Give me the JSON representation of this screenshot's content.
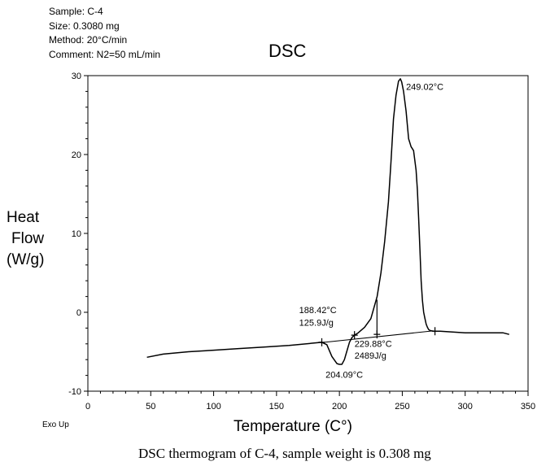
{
  "header": {
    "sample": "Sample: C-4",
    "size": "Size: 0.3080 mg",
    "method": "Method: 20°C/min",
    "comment": "Comment: N2=50 mL/min"
  },
  "footer": {
    "exo": "Exo Up",
    "caption": "DSC thermogram of C-4, sample weight is 0.308 mg"
  },
  "chart_data": {
    "type": "line",
    "title": "DSC",
    "xlabel": "Temperature (C°)",
    "ylabel": [
      "Heat",
      "Flow",
      "(W/g)"
    ],
    "xlim": [
      0,
      350
    ],
    "ylim": [
      -10,
      30
    ],
    "grid": false,
    "x_ticks": [
      0,
      50,
      100,
      150,
      200,
      250,
      300,
      350
    ],
    "y_ticks": [
      -10,
      0,
      10,
      20,
      30
    ],
    "series": [
      {
        "x": [
          47,
          60,
          80,
          100,
          120,
          140,
          160,
          180,
          186,
          190,
          194,
          198,
          200,
          202,
          204,
          206,
          208,
          210,
          212,
          215,
          220,
          225,
          230,
          233,
          236,
          239,
          241,
          243,
          245,
          247,
          248.5,
          249.5,
          251,
          253,
          255,
          257,
          259,
          261,
          262,
          263,
          264,
          265,
          266,
          267,
          268,
          269,
          270,
          271,
          272,
          275,
          280,
          290,
          300,
          310,
          320,
          330,
          335
        ],
        "y": [
          -5.7,
          -5.3,
          -5.0,
          -4.8,
          -4.6,
          -4.4,
          -4.2,
          -3.9,
          -3.8,
          -4.1,
          -5.6,
          -6.5,
          -6.6,
          -6.6,
          -6.0,
          -4.9,
          -3.8,
          -3.2,
          -2.9,
          -2.6,
          -1.9,
          -0.8,
          2.0,
          5.0,
          9.0,
          14.0,
          19.0,
          24.5,
          27.5,
          29.3,
          29.6,
          29.2,
          28.0,
          25.5,
          22.0,
          21.0,
          20.5,
          18.0,
          15.5,
          12.0,
          8.0,
          4.0,
          1.5,
          0.0,
          -0.8,
          -1.5,
          -1.9,
          -2.2,
          -2.3,
          -2.4,
          -2.4,
          -2.5,
          -2.6,
          -2.6,
          -2.6,
          -2.6,
          -2.8
        ]
      }
    ],
    "baseline": {
      "x": [
        185,
        275
      ],
      "y": [
        -3.85,
        -2.35
      ]
    },
    "integration_lines": [
      {
        "x": [
          229.88,
          229.88
        ],
        "y": [
          -2.8,
          1.6
        ]
      }
    ],
    "markers": [
      {
        "x": 186,
        "y": -3.8
      },
      {
        "x": 212,
        "y": -2.9
      },
      {
        "x": 229.88,
        "y": -2.8
      },
      {
        "x": 276,
        "y": -2.4
      }
    ],
    "annotations": [
      {
        "text": "249.02°C",
        "x": 253,
        "y": 28.2
      },
      {
        "text": "188.42°C",
        "x": 168,
        "y": -0.1
      },
      {
        "text": "125.9J/g",
        "x": 168,
        "y": -1.7
      },
      {
        "text": "229.88°C",
        "x": 212,
        "y": -4.4
      },
      {
        "text": "2489J/g",
        "x": 212,
        "y": -5.9
      },
      {
        "text": "204.09°C",
        "x": 189,
        "y": -8.3
      }
    ]
  }
}
